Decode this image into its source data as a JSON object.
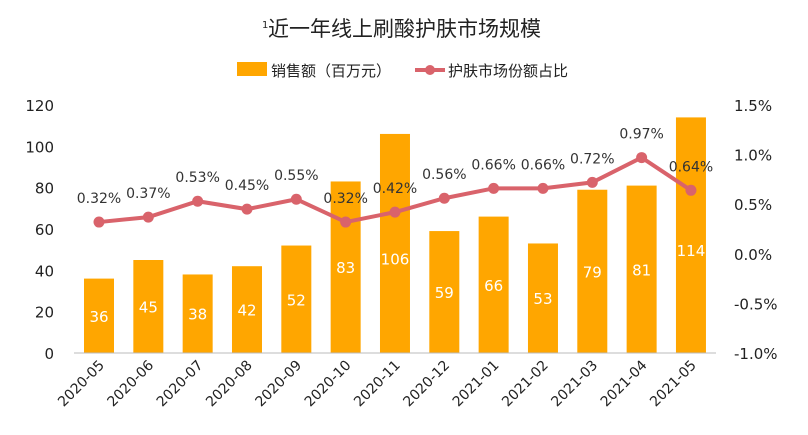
{
  "chart_data": {
    "type": "bar+line",
    "title": "近一年线上刷酸护肤市场规模",
    "title_superscript": "1",
    "categories": [
      "2020-05",
      "2020-06",
      "2020-07",
      "2020-08",
      "2020-09",
      "2020-10",
      "2020-11",
      "2020-12",
      "2021-01",
      "2021-02",
      "2021-03",
      "2021-04",
      "2021-05"
    ],
    "series": [
      {
        "name": "销售额（百万元）",
        "type": "bar",
        "axis": "left",
        "color": "#FFA600",
        "values": [
          36,
          45,
          38,
          42,
          52,
          83,
          106,
          59,
          66,
          53,
          79,
          81,
          114
        ]
      },
      {
        "name": "护肤市场份额占比",
        "type": "line",
        "axis": "right",
        "color": "#D9636B",
        "values": [
          0.32,
          0.37,
          0.53,
          0.45,
          0.55,
          0.32,
          0.42,
          0.56,
          0.66,
          0.66,
          0.72,
          0.97,
          0.64
        ],
        "labels": [
          "0.32%",
          "0.37%",
          "0.53%",
          "0.45%",
          "0.55%",
          "0.32%",
          "0.42%",
          "0.56%",
          "0.66%",
          "0.66%",
          "0.72%",
          "0.97%",
          "0.64%"
        ]
      }
    ],
    "ylim_left": [
      0,
      120
    ],
    "yticks_left": [
      "0",
      "20",
      "40",
      "60",
      "80",
      "100",
      "120"
    ],
    "ylim_right": [
      -1.0,
      1.5
    ],
    "yticks_right": [
      "-1.0%",
      "-0.5%",
      "0.0%",
      "0.5%",
      "1.0%",
      "1.5%"
    ],
    "grid": false,
    "legend_position": "top"
  }
}
